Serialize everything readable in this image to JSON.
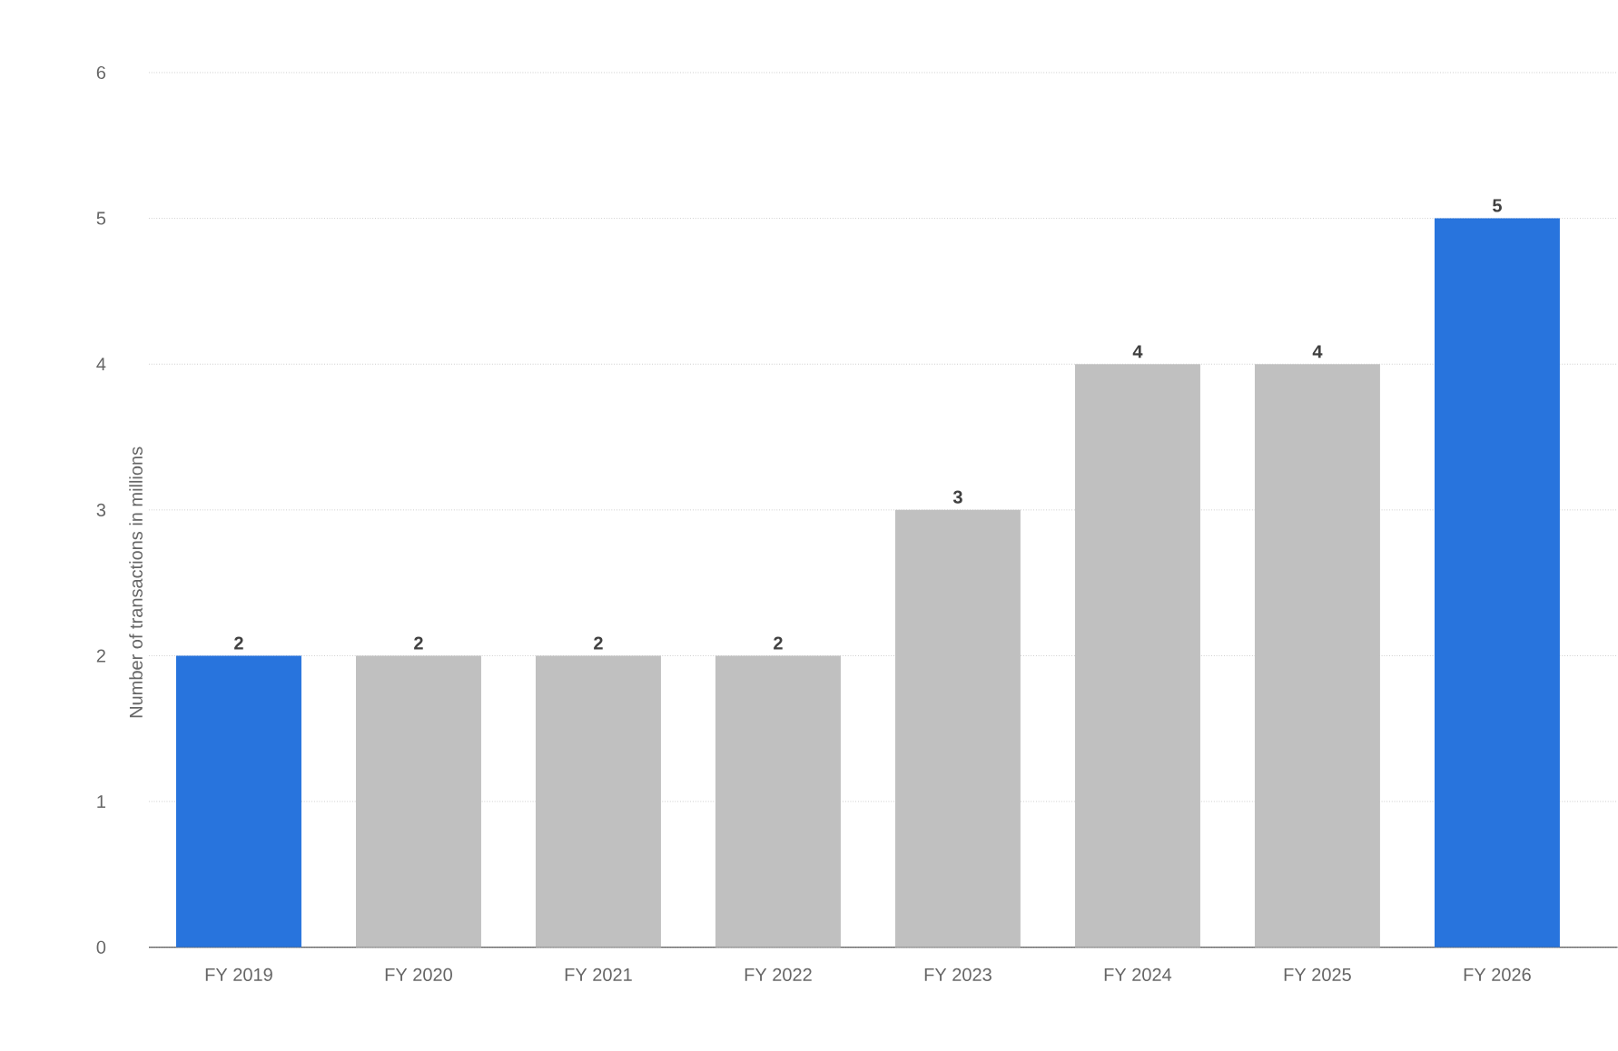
{
  "chart_data": {
    "type": "bar",
    "ylabel": "Number of transactions in millions",
    "categories": [
      "FY 2019",
      "FY 2020",
      "FY 2021",
      "FY 2022",
      "FY 2023",
      "FY 2024",
      "FY 2025",
      "FY 2026"
    ],
    "values": [
      2,
      2,
      2,
      2,
      3,
      4,
      4,
      5
    ],
    "colors": [
      "#2874dd",
      "#c0c0c0",
      "#c0c0c0",
      "#c0c0c0",
      "#c0c0c0",
      "#c0c0c0",
      "#c0c0c0",
      "#2874dd"
    ],
    "ylim": [
      0,
      6
    ],
    "yticks": [
      0,
      1,
      2,
      3,
      4,
      5,
      6
    ],
    "grid": "y",
    "data_labels": true
  }
}
